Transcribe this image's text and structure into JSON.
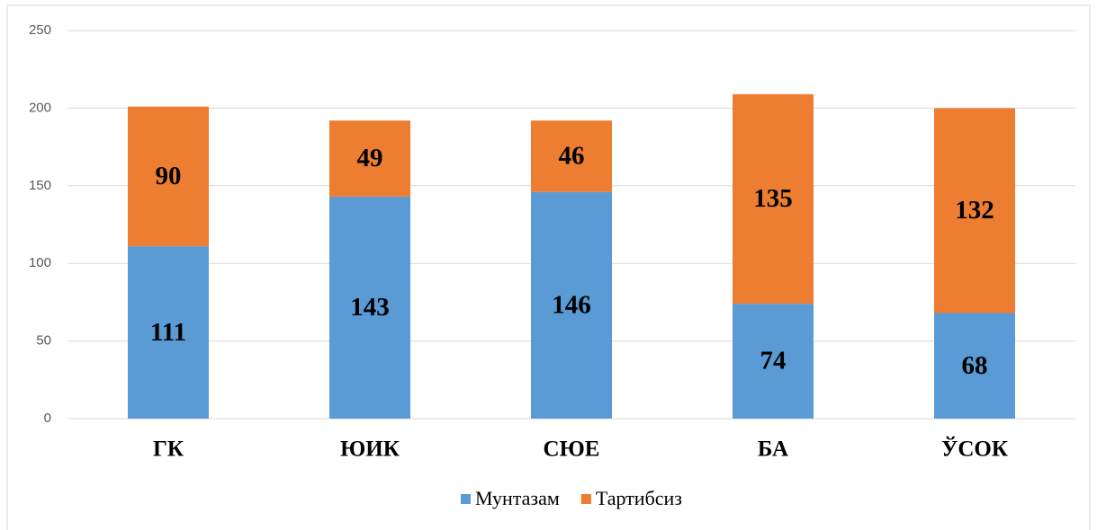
{
  "chart_data": {
    "type": "stacked_bar",
    "categories": [
      "ГК",
      "ЮИК",
      "СЮЕ",
      "БА",
      "ЎСОК"
    ],
    "series": [
      {
        "name": "Мунтазам",
        "color": "#5b9bd5",
        "values": [
          111,
          143,
          146,
          74,
          68
        ]
      },
      {
        "name": "Тартибсиз",
        "color": "#ed7d31",
        "values": [
          90,
          49,
          46,
          135,
          132
        ]
      }
    ],
    "ylim": [
      0,
      250
    ],
    "yticks": [
      0,
      50,
      100,
      150,
      200,
      250
    ],
    "grid": true,
    "legend": "bottom"
  }
}
